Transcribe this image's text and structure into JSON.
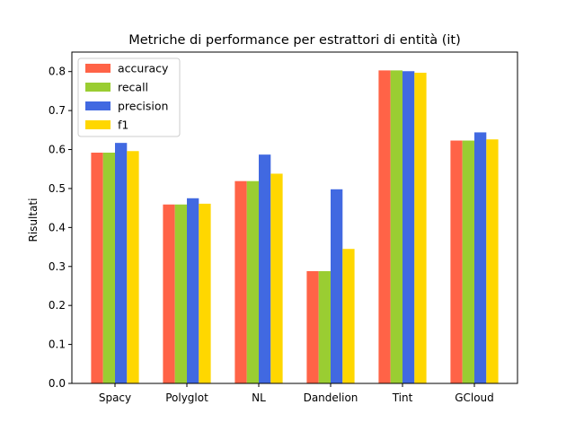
{
  "chart_data": {
    "type": "bar",
    "title": "Metriche di performance per estrattori di entità (it)",
    "xlabel": "",
    "ylabel": "Risultati",
    "ylim": [
      0,
      0.85
    ],
    "yticks": [
      "0.0",
      "0.1",
      "0.2",
      "0.3",
      "0.4",
      "0.5",
      "0.6",
      "0.7",
      "0.8"
    ],
    "categories": [
      "Spacy",
      "Polyglot",
      "NL",
      "Dandelion",
      "Tint",
      "GCloud"
    ],
    "legend_position": "top-left",
    "series": [
      {
        "name": "accuracy",
        "color": "#ff6347",
        "values": [
          0.592,
          0.459,
          0.519,
          0.288,
          0.803,
          0.623
        ]
      },
      {
        "name": "recall",
        "color": "#9acd32",
        "values": [
          0.592,
          0.459,
          0.519,
          0.288,
          0.803,
          0.623
        ]
      },
      {
        "name": "precision",
        "color": "#4169e1",
        "values": [
          0.617,
          0.475,
          0.587,
          0.498,
          0.801,
          0.644
        ]
      },
      {
        "name": "f1",
        "color": "#ffd700",
        "values": [
          0.596,
          0.461,
          0.538,
          0.345,
          0.797,
          0.626
        ]
      }
    ]
  }
}
